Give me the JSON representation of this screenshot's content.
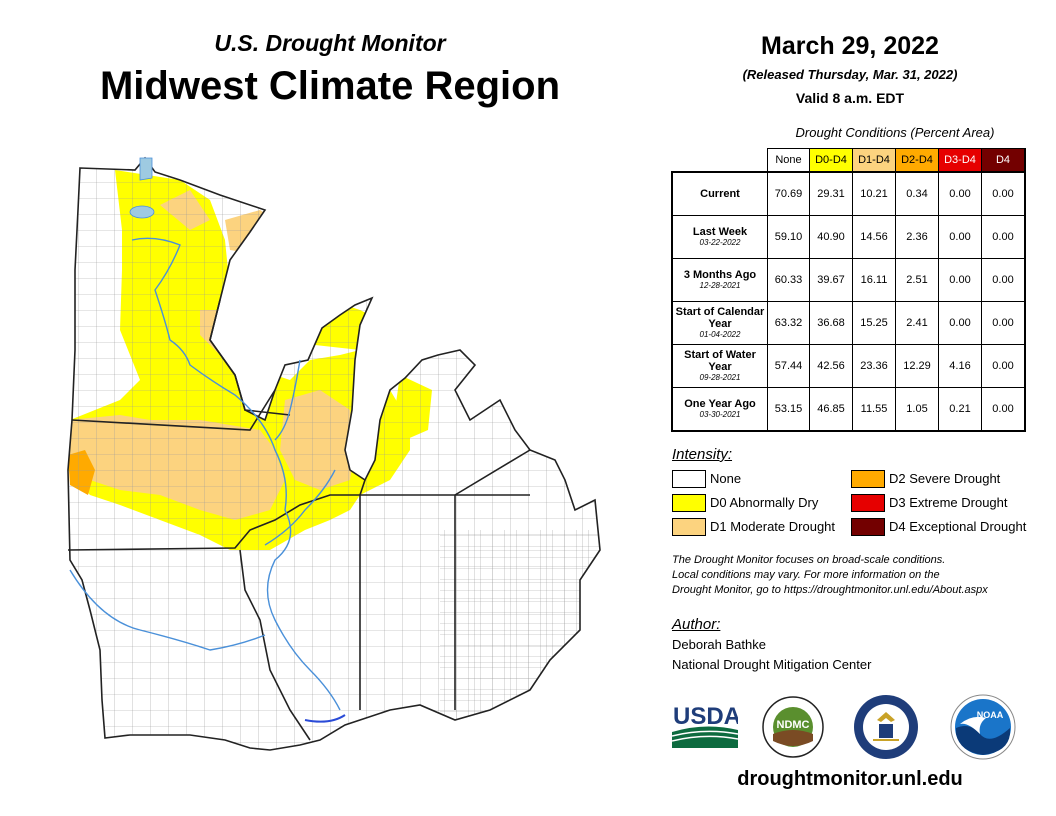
{
  "header": {
    "subtitle": "U.S. Drought Monitor",
    "title": "Midwest Climate Region",
    "date": "March 29, 2022",
    "released": "(Released Thursday, Mar. 31, 2022)",
    "valid": "Valid 8 a.m. EDT"
  },
  "table": {
    "caption": "Drought Conditions (Percent Area)",
    "columns": [
      {
        "label": "None",
        "color": "#ffffff",
        "text_color": "#000000"
      },
      {
        "label": "D0-D4",
        "color": "#ffff00",
        "text_color": "#000000"
      },
      {
        "label": "D1-D4",
        "color": "#fcd37f",
        "text_color": "#000000"
      },
      {
        "label": "D2-D4",
        "color": "#ffaa00",
        "text_color": "#000000"
      },
      {
        "label": "D3-D4",
        "color": "#e60000",
        "text_color": "#ffffff"
      },
      {
        "label": "D4",
        "color": "#730000",
        "text_color": "#ffffff"
      }
    ],
    "rows": [
      {
        "label": "Current",
        "date": "",
        "values": [
          "70.69",
          "29.31",
          "10.21",
          "0.34",
          "0.00",
          "0.00"
        ]
      },
      {
        "label": "Last Week",
        "date": "03-22-2022",
        "values": [
          "59.10",
          "40.90",
          "14.56",
          "2.36",
          "0.00",
          "0.00"
        ]
      },
      {
        "label": "3 Months Ago",
        "date": "12-28-2021",
        "values": [
          "60.33",
          "39.67",
          "16.11",
          "2.51",
          "0.00",
          "0.00"
        ]
      },
      {
        "label": "Start of Calendar Year",
        "date": "01-04-2022",
        "values": [
          "63.32",
          "36.68",
          "15.25",
          "2.41",
          "0.00",
          "0.00"
        ]
      },
      {
        "label": "Start of Water Year",
        "date": "09-28-2021",
        "values": [
          "57.44",
          "42.56",
          "23.36",
          "12.29",
          "4.16",
          "0.00"
        ]
      },
      {
        "label": "One Year Ago",
        "date": "03-30-2021",
        "values": [
          "53.15",
          "46.85",
          "11.55",
          "1.05",
          "0.21",
          "0.00"
        ]
      }
    ]
  },
  "legend": {
    "title": "Intensity:",
    "items": [
      {
        "label": "None",
        "color": "#ffffff"
      },
      {
        "label": "D0 Abnormally Dry",
        "color": "#ffff00"
      },
      {
        "label": "D1 Moderate Drought",
        "color": "#fcd37f"
      },
      {
        "label": "D2 Severe Drought",
        "color": "#ffaa00"
      },
      {
        "label": "D3 Extreme Drought",
        "color": "#e60000"
      },
      {
        "label": "D4 Exceptional Drought",
        "color": "#730000"
      }
    ]
  },
  "note": {
    "line1": "The Drought Monitor focuses on broad-scale conditions.",
    "line2": "Local conditions may vary. For more information on the",
    "line3": "Drought Monitor, go to https://droughtmonitor.unl.edu/About.aspx"
  },
  "author": {
    "title": "Author:",
    "name": "Deborah Bathke",
    "org": "National Drought Mitigation Center"
  },
  "logos": {
    "usda": "USDA",
    "ndmc": "NDMC",
    "noaa": "NOAA"
  },
  "website": "droughtmonitor.unl.edu",
  "colors": {
    "none": "#ffffff",
    "d0": "#ffff00",
    "d1": "#fcd37f",
    "d2": "#ffaa00",
    "water": "#9ecae1",
    "river": "#4a90d9"
  }
}
